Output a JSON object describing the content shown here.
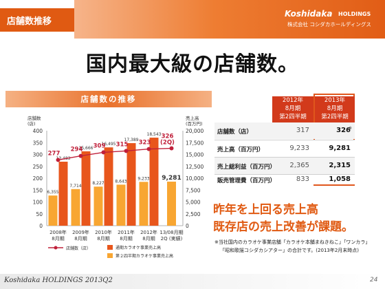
{
  "header": {
    "title": "店舗数推移",
    "logo_brand": "Koshidaka",
    "logo_holdings": "HOLDINGS",
    "logo_sub": "株式会社 コシダカホールディングス"
  },
  "headline": "国内最大級の店舗数。",
  "chart_data": {
    "type": "bar",
    "title": "店舗数の推移",
    "categories": [
      "2008年\n8月期",
      "2009年\n8月期",
      "2010年\n8月期",
      "2011年\n8月期",
      "2012年\n8月期",
      "13/08月期\n2Q (実績)"
    ],
    "y_left_label": "店舗数\n(店)",
    "y_right_label": "売上高\n(百万円)",
    "y_left_lim": [
      0,
      400
    ],
    "y_left_ticks": [
      "0",
      "50",
      "100",
      "150",
      "200",
      "250",
      "300",
      "350",
      "400"
    ],
    "y_right_lim": [
      0,
      20000
    ],
    "y_right_ticks": [
      "0",
      "2,500",
      "5,000",
      "7,500",
      "10,000",
      "12,500",
      "15,000",
      "17,500",
      "20,000"
    ],
    "series": [
      {
        "name": "通期カラオケ事業売上高",
        "kind": "bar",
        "axis": "right",
        "color": "#e8561c",
        "values": [
          13483,
          15666,
          16495,
          17389,
          18543,
          null
        ],
        "labels": [
          "13,483",
          "15,666",
          "16,495",
          "17,389",
          "18,543",
          ""
        ]
      },
      {
        "name": "第２四半期カラオケ事業売上高",
        "kind": "bar",
        "axis": "right",
        "color": "#f8a632",
        "values": [
          6355,
          7714,
          8227,
          8643,
          9233,
          9281
        ],
        "labels": [
          "6,355",
          "7,714",
          "8,227",
          "8,643",
          "9,233",
          "9,281"
        ]
      },
      {
        "name": "店舗数（店）",
        "kind": "line",
        "axis": "left",
        "color": "#c0203a",
        "values": [
          277,
          294,
          309,
          315,
          323,
          326
        ],
        "labels": [
          "277",
          "294",
          "309",
          "315",
          "323",
          "326\n(2Q)"
        ]
      }
    ],
    "legend": [
      {
        "name": "店舗数（店）",
        "kind": "line",
        "color": "#c0203a"
      },
      {
        "name": "通期カラオケ事業売上高",
        "kind": "bar",
        "color": "#e8561c"
      },
      {
        "name": "第２四半期カラオケ事業売上高",
        "kind": "bar",
        "color": "#f8a632"
      }
    ],
    "legend_placement": "bottom",
    "grid": false
  },
  "table": {
    "col_2012": [
      "2012年",
      "8月期",
      "第2四半期"
    ],
    "col_2013": [
      "2013年",
      "8月期",
      "第2四半期"
    ],
    "rows": [
      {
        "label": "店舗数（店）",
        "v2012": "317",
        "v2013": "326"
      },
      {
        "label": "売上高（百万円）",
        "v2012": "9,233",
        "v2013": "9,281"
      },
      {
        "label": "売上総利益（百万円）",
        "v2012": "2,365",
        "v2013": "2,315"
      },
      {
        "label": "販売管理費（百万円）",
        "v2012": "833",
        "v2013": "1,058"
      }
    ],
    "footnote_mark": "※"
  },
  "highlight": {
    "line1": "昨年を上回る売上高",
    "line2": "既存店の売上改善が課題。"
  },
  "footnote": {
    "line1": "※当社国内のカラオケ事業店舗「カラオケ本舗まねきねこ」「ワンカラ」",
    "line2": "「昭和歌謡コシダカシアター」の合計です。(2013年2月末時点)"
  },
  "footer": {
    "brand": "Koshidaka HOLDINGS 2013Q2",
    "page": "24"
  },
  "colors": {
    "accent": "#e05a12",
    "bar_full": "#e8561c",
    "bar_2q": "#f8a632",
    "line": "#c0203a",
    "table_head": "#d23a1b"
  }
}
